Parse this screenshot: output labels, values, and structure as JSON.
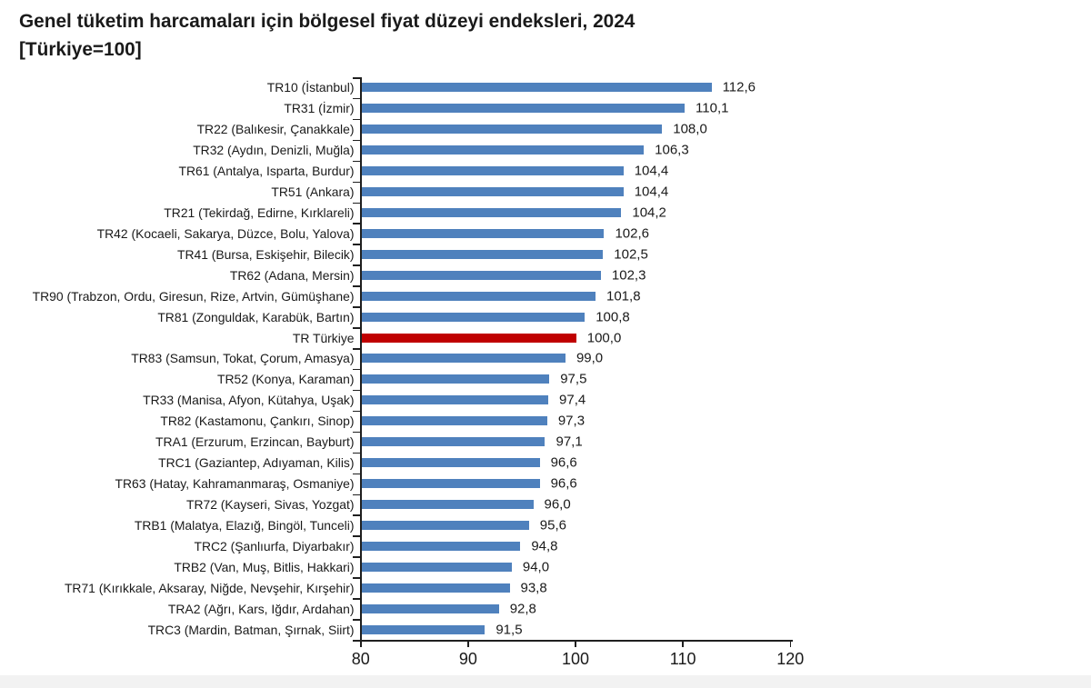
{
  "title": "Genel tüketim harcamaları için bölgesel fiyat düzeyi endeksleri, 2024",
  "subtitle": "[Türkiye=100]",
  "colors": {
    "bar": "#4f81bd",
    "highlight_bar": "#c00000",
    "axis": "#1f1f1f",
    "text": "#1a1a1a",
    "background": "#ffffff",
    "footer_band": "#f2f2f2"
  },
  "chart_data": {
    "type": "bar",
    "orientation": "horizontal",
    "title": "Genel tüketim harcamaları için bölgesel fiyat düzeyi endeksleri, 2024",
    "subtitle": "[Türkiye=100]",
    "xlabel": "",
    "ylabel": "",
    "xlim": [
      80,
      120
    ],
    "x_ticks": [
      80,
      90,
      100,
      110,
      120
    ],
    "grid": false,
    "legend": false,
    "decimal_separator": ",",
    "highlight_category": "TR Türkiye",
    "categories": [
      "TR10 (İstanbul)",
      "TR31 (İzmir)",
      "TR22 (Balıkesir, Çanakkale)",
      "TR32 (Aydın, Denizli, Muğla)",
      "TR61 (Antalya, Isparta, Burdur)",
      "TR51 (Ankara)",
      "TR21 (Tekirdağ, Edirne, Kırklareli)",
      "TR42 (Kocaeli, Sakarya, Düzce, Bolu, Yalova)",
      "TR41 (Bursa, Eskişehir, Bilecik)",
      "TR62 (Adana, Mersin)",
      "TR90 (Trabzon, Ordu, Giresun, Rize, Artvin, Gümüşhane)",
      "TR81 (Zonguldak, Karabük, Bartın)",
      "TR Türkiye",
      "TR83 (Samsun, Tokat, Çorum, Amasya)",
      "TR52 (Konya, Karaman)",
      "TR33 (Manisa, Afyon, Kütahya, Uşak)",
      "TR82 (Kastamonu, Çankırı, Sinop)",
      "TRA1 (Erzurum, Erzincan, Bayburt)",
      "TRC1 (Gaziantep, Adıyaman, Kilis)",
      "TR63 (Hatay, Kahramanmaraş, Osmaniye)",
      "TR72 (Kayseri, Sivas, Yozgat)",
      "TRB1 (Malatya, Elazığ, Bingöl, Tunceli)",
      "TRC2 (Şanlıurfa, Diyarbakır)",
      "TRB2 (Van, Muş, Bitlis, Hakkari)",
      "TR71 (Kırıkkale, Aksaray, Niğde, Nevşehir, Kırşehir)",
      "TRA2 (Ağrı, Kars, Iğdır, Ardahan)",
      "TRC3 (Mardin, Batman, Şırnak, Siirt)"
    ],
    "values": [
      112.6,
      110.1,
      108.0,
      106.3,
      104.4,
      104.4,
      104.2,
      102.6,
      102.5,
      102.3,
      101.8,
      100.8,
      100.0,
      99.0,
      97.5,
      97.4,
      97.3,
      97.1,
      96.6,
      96.6,
      96.0,
      95.6,
      94.8,
      94.0,
      93.8,
      92.8,
      91.5
    ],
    "value_labels": [
      "112,6",
      "110,1",
      "108,0",
      "106,3",
      "104,4",
      "104,4",
      "104,2",
      "102,6",
      "102,5",
      "102,3",
      "101,8",
      "100,8",
      "100,0",
      "99,0",
      "97,5",
      "97,4",
      "97,3",
      "97,1",
      "96,6",
      "96,6",
      "96,0",
      "95,6",
      "94,8",
      "94,0",
      "93,8",
      "92,8",
      "91,5"
    ]
  }
}
